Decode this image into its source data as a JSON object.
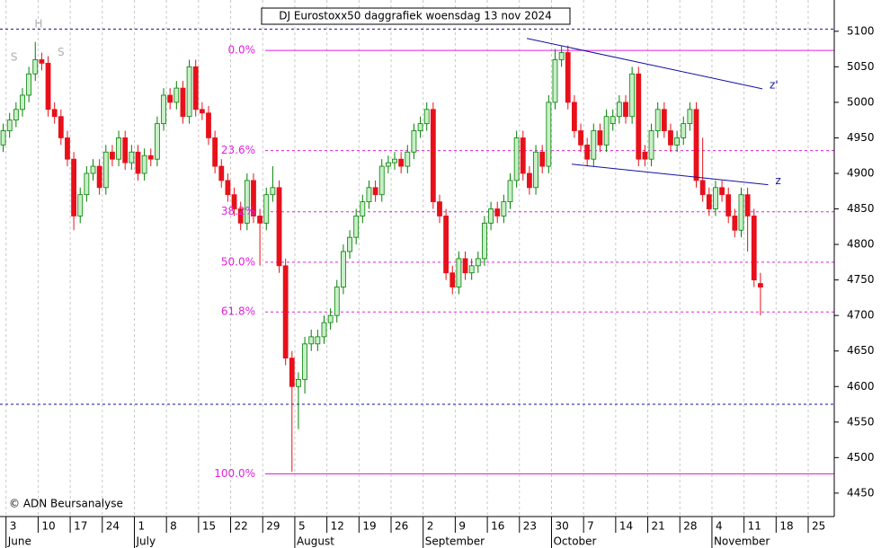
{
  "chart_data": {
    "type": "candlestick",
    "title": "DJ Eurostoxx50 daggrafiek woensdag 13 nov 2024",
    "copyright": "© ADN Beursanalyse",
    "xlim": [
      -0.5,
      129.5
    ],
    "ylim": [
      4417,
      5144
    ],
    "yticks": [
      4450,
      4500,
      4550,
      4600,
      4650,
      4700,
      4750,
      4800,
      4850,
      4900,
      4950,
      5000,
      5050,
      5100
    ],
    "xticks": [
      {
        "value": 1,
        "label": "3"
      },
      {
        "value": 6,
        "label": "10"
      },
      {
        "value": 11,
        "label": "17"
      },
      {
        "value": 16,
        "label": "24"
      },
      {
        "value": 21,
        "label": "1"
      },
      {
        "value": 26,
        "label": "8"
      },
      {
        "value": 31,
        "label": "15"
      },
      {
        "value": 36,
        "label": "22"
      },
      {
        "value": 41,
        "label": "29"
      },
      {
        "value": 46,
        "label": "5"
      },
      {
        "value": 51,
        "label": "12"
      },
      {
        "value": 56,
        "label": "19"
      },
      {
        "value": 61,
        "label": "26"
      },
      {
        "value": 66,
        "label": "2"
      },
      {
        "value": 71,
        "label": "9"
      },
      {
        "value": 76,
        "label": "16"
      },
      {
        "value": 81,
        "label": "23"
      },
      {
        "value": 86,
        "label": "30"
      },
      {
        "value": 91,
        "label": "7"
      },
      {
        "value": 96,
        "label": "14"
      },
      {
        "value": 101,
        "label": "21"
      },
      {
        "value": 106,
        "label": "28"
      },
      {
        "value": 111,
        "label": "4"
      },
      {
        "value": 116,
        "label": "11"
      },
      {
        "value": 121,
        "label": "18"
      },
      {
        "value": 126,
        "label": "25"
      }
    ],
    "months": [
      {
        "value": 1,
        "label": "June"
      },
      {
        "value": 21,
        "label": "July"
      },
      {
        "value": 46,
        "label": "August"
      },
      {
        "value": 66,
        "label": "September"
      },
      {
        "value": 86,
        "label": "October"
      },
      {
        "value": 111,
        "label": "November"
      }
    ],
    "up_color": "#008000",
    "up_fill": "#c8f0c8",
    "down_color": "#e8101a",
    "grid": true,
    "open": [
      4940,
      4960,
      4975,
      4990,
      5010,
      5040,
      5060,
      5055,
      4990,
      4980,
      4950,
      4920,
      4840,
      4870,
      4900,
      4910,
      4880,
      4930,
      4920,
      4950,
      4915,
      4930,
      4900,
      4925,
      4920,
      4970,
      5010,
      5000,
      5020,
      4980,
      5050,
      4990,
      4985,
      4950,
      4910,
      4890,
      4870,
      4850,
      4830,
      4890,
      4840,
      4830,
      4870,
      4880,
      4770,
      4640,
      4600,
      4610,
      4660,
      4660,
      4670,
      4690,
      4700,
      4740,
      4790,
      4810,
      4840,
      4860,
      4880,
      4870,
      4910,
      4915,
      4920,
      4910,
      4930,
      4960,
      4970,
      4990,
      4860,
      4840,
      4760,
      4740,
      4780,
      4760,
      4770,
      4780,
      4830,
      4850,
      4840,
      4860,
      4890,
      4950,
      4900,
      4880,
      4930,
      4910,
      5000,
      5060,
      5070,
      5000,
      4960,
      4940,
      4920,
      4960,
      4940,
      4970,
      4980,
      5000,
      4980,
      5040,
      4930,
      4920,
      4960,
      4990,
      4960,
      4940,
      4950,
      4970,
      4990,
      4890,
      4870,
      4850,
      4880,
      4870,
      4840,
      4820,
      4870,
      4840,
      4745
    ],
    "high": [
      4970,
      4985,
      5000,
      5020,
      5050,
      5085,
      5070,
      5065,
      5000,
      4990,
      4960,
      4930,
      4880,
      4910,
      4920,
      4920,
      4940,
      4940,
      4960,
      4960,
      4940,
      4940,
      4935,
      4935,
      4980,
      5020,
      5020,
      5030,
      5030,
      5060,
      5060,
      5000,
      4995,
      4960,
      4920,
      4900,
      4880,
      4860,
      4900,
      4900,
      4850,
      4880,
      4910,
      4890,
      4780,
      4650,
      4620,
      4670,
      4680,
      4680,
      4700,
      4710,
      4750,
      4800,
      4820,
      4850,
      4870,
      4890,
      4890,
      4920,
      4925,
      4930,
      4930,
      4940,
      4970,
      4980,
      5000,
      5000,
      4870,
      4850,
      4770,
      4790,
      4790,
      4780,
      4790,
      4840,
      4860,
      4860,
      4870,
      4900,
      4960,
      4960,
      4910,
      4940,
      4940,
      5010,
      5075,
      5080,
      5080,
      5010,
      4970,
      4950,
      4970,
      4970,
      4990,
      4990,
      5010,
      5010,
      5050,
      5050,
      4940,
      4970,
      5000,
      5000,
      4970,
      4960,
      4980,
      5000,
      5000,
      4950,
      4880,
      4890,
      4890,
      4880,
      4850,
      4880,
      4880,
      4850,
      4760
    ],
    "low": [
      4930,
      4950,
      4965,
      4980,
      5000,
      5030,
      5045,
      4980,
      4970,
      4940,
      4910,
      4820,
      4830,
      4860,
      4890,
      4870,
      4870,
      4910,
      4910,
      4905,
      4905,
      4890,
      4890,
      4910,
      4910,
      4960,
      4990,
      4990,
      4970,
      4970,
      4980,
      4975,
      4940,
      4900,
      4880,
      4860,
      4840,
      4820,
      4820,
      4830,
      4770,
      4820,
      4860,
      4760,
      4630,
      4480,
      4540,
      4590,
      4650,
      4650,
      4660,
      4680,
      4690,
      4730,
      4780,
      4800,
      4830,
      4850,
      4860,
      4860,
      4900,
      4905,
      4900,
      4900,
      4920,
      4950,
      4960,
      4850,
      4830,
      4750,
      4730,
      4730,
      4750,
      4750,
      4760,
      4770,
      4820,
      4830,
      4830,
      4850,
      4880,
      4890,
      4870,
      4870,
      4900,
      4900,
      4990,
      5050,
      4990,
      4950,
      4930,
      4910,
      4910,
      4930,
      4930,
      4960,
      4970,
      4970,
      4970,
      4910,
      4910,
      4910,
      4950,
      4950,
      4930,
      4930,
      4940,
      4960,
      4880,
      4860,
      4840,
      4840,
      4860,
      4830,
      4810,
      4810,
      4790,
      4740,
      4700
    ],
    "close": [
      4960,
      4975,
      4990,
      5010,
      5040,
      5060,
      5055,
      4990,
      4980,
      4950,
      4920,
      4840,
      4870,
      4900,
      4910,
      4880,
      4930,
      4920,
      4950,
      4915,
      4930,
      4900,
      4925,
      4920,
      4970,
      5010,
      5000,
      5020,
      4980,
      5050,
      4990,
      4985,
      4950,
      4910,
      4890,
      4870,
      4850,
      4830,
      4890,
      4840,
      4830,
      4870,
      4880,
      4770,
      4640,
      4600,
      4610,
      4660,
      4670,
      4670,
      4690,
      4700,
      4740,
      4790,
      4810,
      4840,
      4860,
      4880,
      4870,
      4910,
      4915,
      4920,
      4910,
      4930,
      4960,
      4970,
      4990,
      4860,
      4840,
      4760,
      4740,
      4780,
      4760,
      4770,
      4780,
      4830,
      4850,
      4840,
      4860,
      4890,
      4950,
      4900,
      4880,
      4930,
      4910,
      5000,
      5060,
      5070,
      5000,
      4960,
      4940,
      4920,
      4960,
      4940,
      4980,
      4980,
      5000,
      4980,
      5040,
      4920,
      4920,
      4960,
      4990,
      4960,
      4940,
      4950,
      4970,
      4990,
      4890,
      4870,
      4850,
      4880,
      4870,
      4840,
      4820,
      4870,
      4840,
      4750,
      4740
    ],
    "fib_levels": [
      {
        "label": "0.0%",
        "price": 5073
      },
      {
        "label": "23.6%",
        "price": 4932
      },
      {
        "label": "38.2%",
        "price": 4846
      },
      {
        "label": "50.0%",
        "price": 4775
      },
      {
        "label": "61.8%",
        "price": 4705
      },
      {
        "label": "100.0%",
        "price": 4477
      }
    ],
    "fib_color": "#e020e0",
    "levels": [
      5103,
      4575
    ],
    "level_color": "#1010a0",
    "trendlines": [
      {
        "label": "z'",
        "x": [
          81.6,
          118.3
        ],
        "y": [
          5090,
          5019
        ]
      },
      {
        "label": "z",
        "x": [
          88.6,
          119.2
        ],
        "y": [
          4913,
          4884
        ]
      }
    ],
    "annotations": [
      {
        "text": "H",
        "x": 5.5,
        "y": 5110
      },
      {
        "text": "S",
        "x": 1.7,
        "y": 5063
      },
      {
        "text": "S",
        "x": 9,
        "y": 5070
      }
    ]
  }
}
